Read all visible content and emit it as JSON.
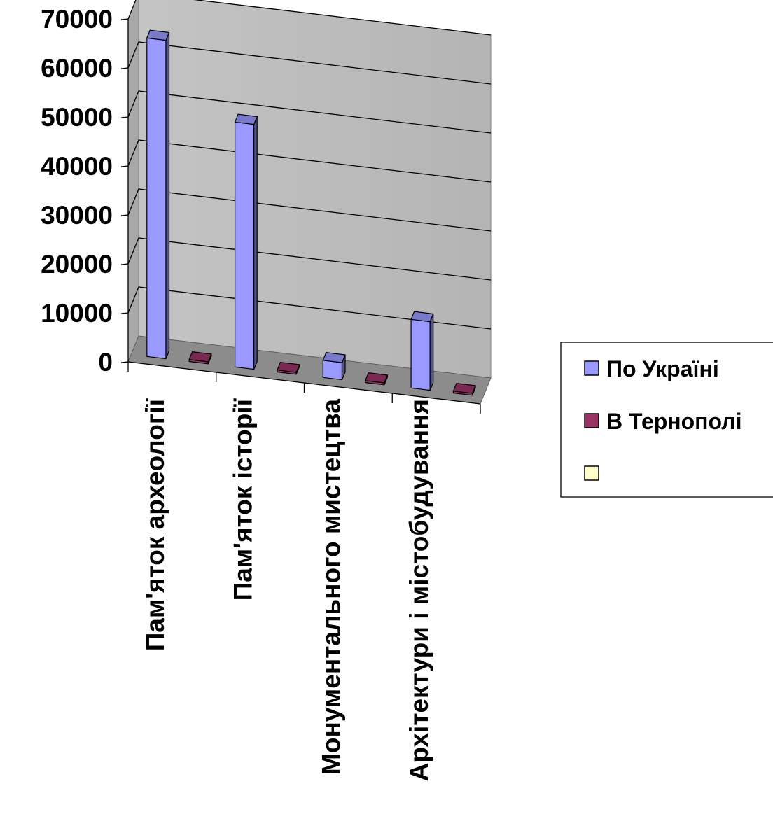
{
  "chart_data": {
    "type": "bar",
    "style": "3d-clustered-column",
    "title": "",
    "xlabel": "",
    "ylabel": "",
    "categories": [
      "Пам'яток археології",
      "Пам'яток історії",
      "Монументального мистецтва",
      "Архітектури і містобудування"
    ],
    "series": [
      {
        "name": "По Україні",
        "color": "#9999FF",
        "values": [
          65000,
          50000,
          3500,
          14000
        ]
      },
      {
        "name": "В Тернополі",
        "color": "#993366",
        "values": [
          100,
          100,
          100,
          100
        ]
      },
      {
        "name": "",
        "color": "#FFFFCC",
        "values": [
          0,
          0,
          0,
          0
        ]
      }
    ],
    "yticks": [
      "0",
      "10000",
      "20000",
      "30000",
      "40000",
      "50000",
      "60000",
      "70000"
    ],
    "ylim": [
      0,
      70000
    ],
    "grid": true,
    "legend_position": "right"
  }
}
